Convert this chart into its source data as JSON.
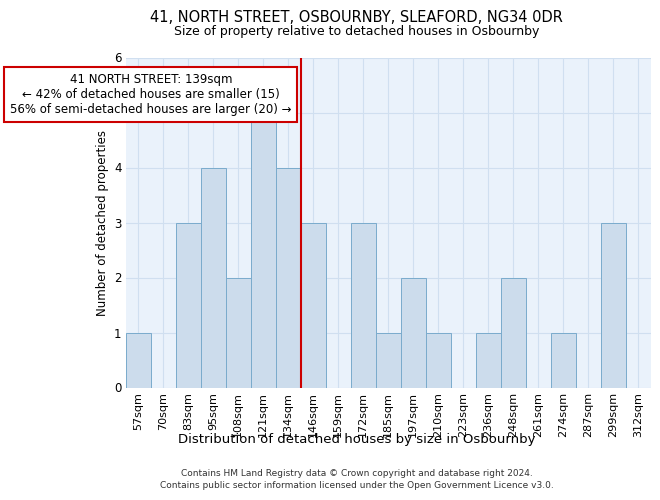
{
  "title1": "41, NORTH STREET, OSBOURNBY, SLEAFORD, NG34 0DR",
  "title2": "Size of property relative to detached houses in Osbournby",
  "xlabel": "Distribution of detached houses by size in Osbournby",
  "ylabel": "Number of detached properties",
  "footer1": "Contains HM Land Registry data © Crown copyright and database right 2024.",
  "footer2": "Contains public sector information licensed under the Open Government Licence v3.0.",
  "annotation_line1": "41 NORTH STREET: 139sqm",
  "annotation_line2": "← 42% of detached houses are smaller (15)",
  "annotation_line3": "56% of semi-detached houses are larger (20) →",
  "bar_labels": [
    "57sqm",
    "70sqm",
    "83sqm",
    "95sqm",
    "108sqm",
    "121sqm",
    "134sqm",
    "146sqm",
    "159sqm",
    "172sqm",
    "185sqm",
    "197sqm",
    "210sqm",
    "223sqm",
    "236sqm",
    "248sqm",
    "261sqm",
    "274sqm",
    "287sqm",
    "299sqm",
    "312sqm"
  ],
  "bar_values": [
    1,
    0,
    3,
    4,
    2,
    5,
    4,
    3,
    0,
    3,
    1,
    2,
    1,
    0,
    1,
    2,
    0,
    1,
    0,
    3,
    0
  ],
  "bar_color": "#ccdcec",
  "bar_edge_color": "#7aabcc",
  "grid_color": "#d0dff0",
  "background_color": "#eaf2fb",
  "vline_color": "#cc0000",
  "ylim": [
    0,
    6
  ],
  "yticks": [
    0,
    1,
    2,
    3,
    4,
    5,
    6
  ],
  "title1_fontsize": 10.5,
  "title2_fontsize": 9,
  "ylabel_fontsize": 8.5,
  "xlabel_fontsize": 9.5,
  "tick_fontsize": 8,
  "footer_fontsize": 6.5,
  "annotation_fontsize": 8.5
}
